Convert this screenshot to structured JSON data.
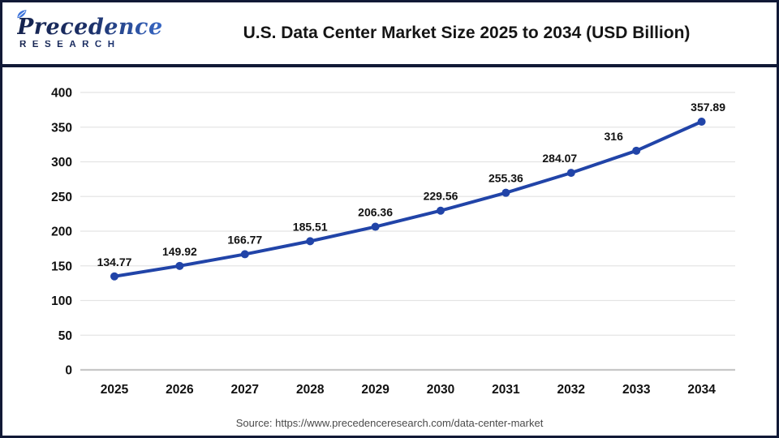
{
  "logo": {
    "brand": "Precedence",
    "tagline": "RESEARCH"
  },
  "header": {
    "title": "U.S. Data Center Market Size 2025 to 2034 (USD Billion)"
  },
  "footer": {
    "source": "Source: https://www.precedenceresearch.com/data-center-market"
  },
  "colors": {
    "line": "#2144a8",
    "marker": "#2144a8",
    "grid_line": "#e4e4e4",
    "axis_line": "#c7c7c7",
    "tick_label": "#111111",
    "data_label": "#111111",
    "frame": "#111936",
    "logo_dark": "#15234e",
    "logo_blue": "#3e74da",
    "source_text": "#4a4a4a"
  },
  "chart_data": {
    "type": "line",
    "title": "U.S. Data Center Market Size 2025 to 2034 (USD Billion)",
    "categories": [
      "2025",
      "2026",
      "2027",
      "2028",
      "2029",
      "2030",
      "2031",
      "2032",
      "2033",
      "2034"
    ],
    "values": [
      134.77,
      149.92,
      166.77,
      185.51,
      206.36,
      229.56,
      255.36,
      284.07,
      316,
      357.89
    ],
    "labels": [
      "134.77",
      "149.92",
      "166.77",
      "185.51",
      "206.36",
      "229.56",
      "255.36",
      "284.07",
      "316",
      "357.89"
    ],
    "xlabel": "",
    "ylabel": "",
    "ylim": [
      0,
      400
    ],
    "ytick_step": 50,
    "grid": true,
    "legend": "none"
  }
}
